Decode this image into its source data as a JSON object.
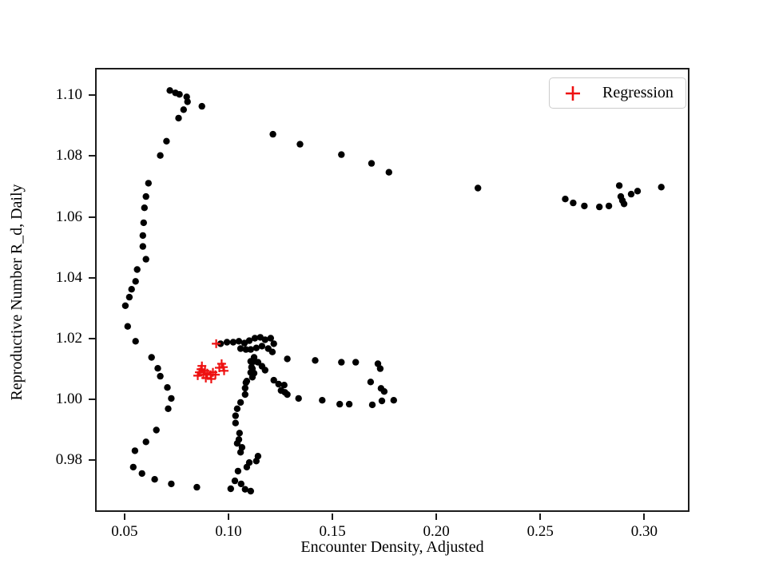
{
  "figure": {
    "xlabel": "Encounter Density, Adjusted",
    "ylabel": "Reproductive Number R_d, Daily",
    "legend": {
      "position": "upper right",
      "items": [
        {
          "label": "Regression",
          "marker": "plus",
          "color": "#ee1111"
        }
      ]
    }
  },
  "chart_data": {
    "type": "scatter",
    "title": "",
    "xlabel": "Encounter Density, Adjusted",
    "ylabel": "Reproductive Number R_d, Daily",
    "xlim": [
      0.0366,
      0.321
    ],
    "ylim": [
      0.9635,
      1.1085
    ],
    "x_ticks": [
      0.05,
      0.1,
      0.15,
      0.2,
      0.25,
      0.3
    ],
    "x_tick_labels": [
      "0.05",
      "0.10",
      "0.15",
      "0.20",
      "0.25",
      "0.30"
    ],
    "y_ticks": [
      0.98,
      1.0,
      1.02,
      1.04,
      1.06,
      1.08,
      1.1
    ],
    "y_tick_labels": [
      "0.98",
      "1.00",
      "1.02",
      "1.04",
      "1.06",
      "1.08",
      "1.10"
    ],
    "grid": false,
    "legend_position": "upper right",
    "series": [
      {
        "name": "observations",
        "marker": "circle",
        "color": "#000000",
        "marker_size": 8.4,
        "in_legend": false,
        "points": [
          [
            0.0718,
            1.1016
          ],
          [
            0.0745,
            1.1008
          ],
          [
            0.0764,
            1.1003
          ],
          [
            0.0799,
            1.0995
          ],
          [
            0.0803,
            1.0979
          ],
          [
            0.0872,
            1.0964
          ],
          [
            0.0784,
            1.0953
          ],
          [
            0.076,
            1.0925
          ],
          [
            0.0702,
            1.0849
          ],
          [
            0.0672,
            1.0802
          ],
          [
            0.0615,
            1.0711
          ],
          [
            0.0603,
            1.0667
          ],
          [
            0.0596,
            1.063
          ],
          [
            0.0592,
            1.0581
          ],
          [
            0.0588,
            1.0539
          ],
          [
            0.0588,
            1.0503
          ],
          [
            0.0603,
            1.0461
          ],
          [
            0.0561,
            1.0427
          ],
          [
            0.0553,
            1.0388
          ],
          [
            0.0534,
            1.0362
          ],
          [
            0.0523,
            1.0336
          ],
          [
            0.0504,
            1.0308
          ],
          [
            0.0515,
            1.024
          ],
          [
            0.0553,
            1.0191
          ],
          [
            0.063,
            1.0138
          ],
          [
            0.066,
            1.0102
          ],
          [
            0.0672,
            1.0076
          ],
          [
            0.0706,
            1.0039
          ],
          [
            0.0725,
            1.0003
          ],
          [
            0.071,
            0.9969
          ],
          [
            0.0653,
            0.9899
          ],
          [
            0.0603,
            0.986
          ],
          [
            0.055,
            0.9831
          ],
          [
            0.0542,
            0.9777
          ],
          [
            0.0584,
            0.9756
          ],
          [
            0.0645,
            0.9737
          ],
          [
            0.0725,
            0.9722
          ],
          [
            0.0848,
            0.9711
          ],
          [
            0.1214,
            1.0872
          ],
          [
            0.1344,
            1.0839
          ],
          [
            0.1543,
            1.0805
          ],
          [
            0.1688,
            1.0776
          ],
          [
            0.1772,
            1.0747
          ],
          [
            0.22,
            1.0695
          ],
          [
            0.262,
            1.0659
          ],
          [
            0.2658,
            1.0646
          ],
          [
            0.2712,
            1.0636
          ],
          [
            0.2784,
            1.0633
          ],
          [
            0.283,
            1.0636
          ],
          [
            0.288,
            1.0703
          ],
          [
            0.2887,
            1.0667
          ],
          [
            0.2895,
            1.0654
          ],
          [
            0.2903,
            1.0643
          ],
          [
            0.2937,
            1.0675
          ],
          [
            0.2968,
            1.0685
          ],
          [
            0.3082,
            1.0698
          ],
          [
            0.0962,
            1.0183
          ],
          [
            0.0993,
            1.0188
          ],
          [
            0.1023,
            1.0188
          ],
          [
            0.105,
            1.0191
          ],
          [
            0.1077,
            1.0185
          ],
          [
            0.11,
            1.0193
          ],
          [
            0.1127,
            1.0201
          ],
          [
            0.1153,
            1.0204
          ],
          [
            0.1176,
            1.0196
          ],
          [
            0.1203,
            1.0201
          ],
          [
            0.1218,
            1.0183
          ],
          [
            0.1058,
            1.0167
          ],
          [
            0.1084,
            1.0164
          ],
          [
            0.1107,
            1.0164
          ],
          [
            0.1134,
            1.0169
          ],
          [
            0.1161,
            1.0175
          ],
          [
            0.1191,
            1.0167
          ],
          [
            0.1211,
            1.0156
          ],
          [
            0.1123,
            1.0138
          ],
          [
            0.1142,
            1.0122
          ],
          [
            0.1161,
            1.0109
          ],
          [
            0.1176,
            1.0096
          ],
          [
            0.1123,
            1.0125
          ],
          [
            0.1115,
            1.0101
          ],
          [
            0.1123,
            1.0086
          ],
          [
            0.1107,
            1.0125
          ],
          [
            0.1111,
            1.0106
          ],
          [
            0.1107,
            1.0088
          ],
          [
            0.1115,
            1.0073
          ],
          [
            0.1084,
            1.0055
          ],
          [
            0.1088,
            1.006
          ],
          [
            0.108,
            1.0037
          ],
          [
            0.108,
            1.0016
          ],
          [
            0.1058,
            0.999
          ],
          [
            0.1042,
            0.9969
          ],
          [
            0.1034,
            0.9946
          ],
          [
            0.1034,
            0.9922
          ],
          [
            0.1053,
            0.9889
          ],
          [
            0.105,
            0.9868
          ],
          [
            0.1042,
            0.9855
          ],
          [
            0.1065,
            0.9842
          ],
          [
            0.1058,
            0.9826
          ],
          [
            0.1142,
            0.9813
          ],
          [
            0.1134,
            0.9797
          ],
          [
            0.11,
            0.9792
          ],
          [
            0.1088,
            0.9777
          ],
          [
            0.1046,
            0.9764
          ],
          [
            0.1031,
            0.9732
          ],
          [
            0.1061,
            0.9722
          ],
          [
            0.1011,
            0.9706
          ],
          [
            0.108,
            0.9704
          ],
          [
            0.1107,
            0.9698
          ],
          [
            0.1283,
            1.0133
          ],
          [
            0.1417,
            1.0128
          ],
          [
            0.1543,
            1.0122
          ],
          [
            0.1612,
            1.0122
          ],
          [
            0.1719,
            1.0117
          ],
          [
            0.173,
            1.0101
          ],
          [
            0.1684,
            1.0057
          ],
          [
            0.1734,
            1.0036
          ],
          [
            0.1749,
            1.0026
          ],
          [
            0.1738,
            0.9995
          ],
          [
            0.1795,
            0.9997
          ],
          [
            0.1692,
            0.9982
          ],
          [
            0.1581,
            0.9984
          ],
          [
            0.1535,
            0.9984
          ],
          [
            0.1451,
            0.9997
          ],
          [
            0.1337,
            1.0003
          ],
          [
            0.1218,
            1.0063
          ],
          [
            0.1241,
            1.005
          ],
          [
            0.1268,
            1.0047
          ],
          [
            0.1253,
            1.0029
          ],
          [
            0.1272,
            1.0023
          ],
          [
            0.1283,
            1.0016
          ]
        ]
      },
      {
        "name": "Regression",
        "marker": "plus",
        "color": "#ee1111",
        "marker_size": 11,
        "in_legend": true,
        "points": [
          [
            0.0941,
            1.0183
          ],
          [
            0.0872,
            1.011
          ],
          [
            0.0887,
            1.0094
          ],
          [
            0.086,
            1.0089
          ],
          [
            0.0879,
            1.0081
          ],
          [
            0.0898,
            1.0086
          ],
          [
            0.0914,
            1.0081
          ],
          [
            0.0925,
            1.0089
          ],
          [
            0.0937,
            1.0081
          ],
          [
            0.0852,
            1.0078
          ],
          [
            0.0891,
            1.007
          ],
          [
            0.0917,
            1.0067
          ],
          [
            0.0967,
            1.0117
          ],
          [
            0.0975,
            1.0106
          ],
          [
            0.0956,
            1.0104
          ],
          [
            0.0979,
            1.0094
          ],
          [
            0.0868,
            1.0099
          ]
        ]
      }
    ]
  }
}
